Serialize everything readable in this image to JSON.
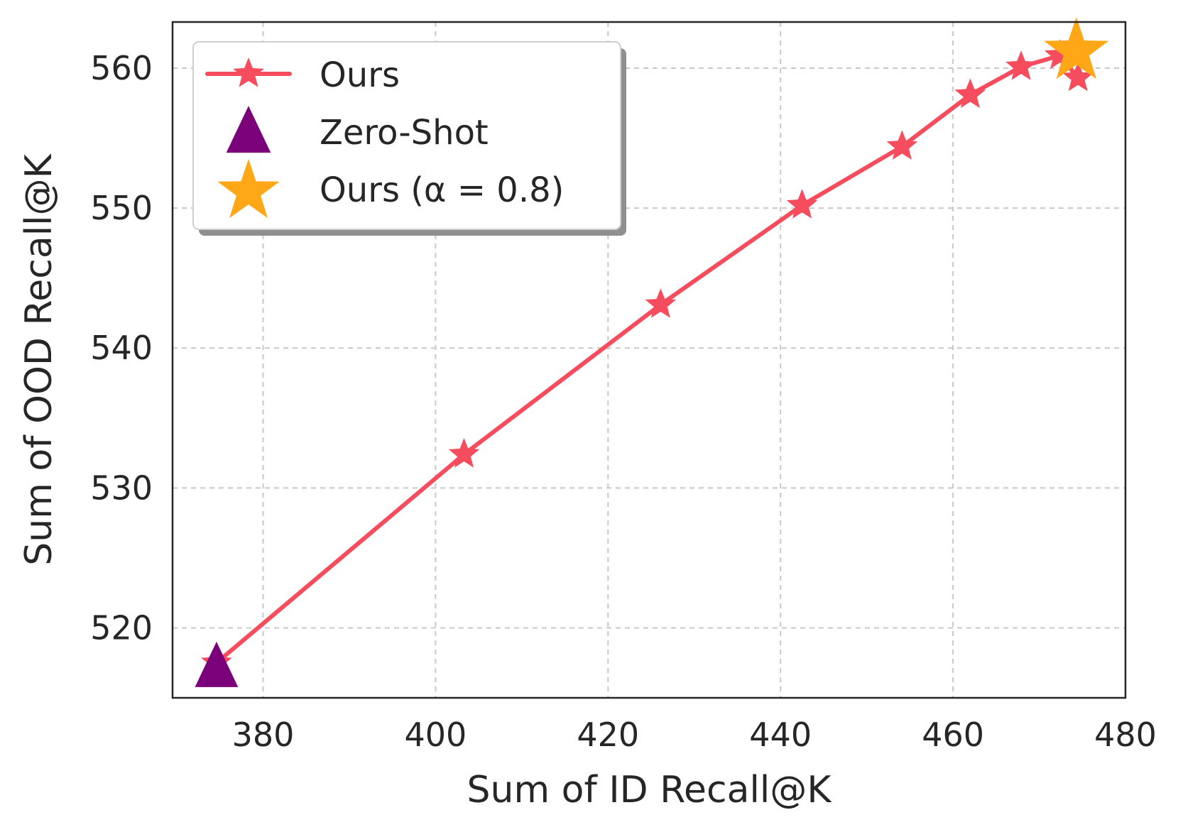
{
  "chart_data": {
    "type": "line",
    "title": "",
    "xlabel": "Sum of ID Recall@K",
    "ylabel": "Sum of OOD Recall@K",
    "xlim": [
      369.5,
      480
    ],
    "ylim": [
      515,
      563.3
    ],
    "xticks": [
      380,
      400,
      420,
      440,
      460,
      480
    ],
    "yticks": [
      520,
      530,
      540,
      550,
      560
    ],
    "grid": true,
    "legend_position": "top-left",
    "series": [
      {
        "name": "Ours",
        "kind": "line",
        "marker": "star",
        "color": "#f64d5e",
        "x": [
          374.6,
          403.3,
          426.1,
          442.5,
          454.1,
          462.0,
          467.9,
          472.4,
          474.5
        ],
        "y": [
          517.5,
          532.4,
          543.1,
          550.2,
          554.4,
          558.1,
          560.1,
          560.9,
          559.3
        ]
      },
      {
        "name": "Zero-Shot",
        "kind": "scatter",
        "marker": "triangle",
        "color": "#7b017b",
        "x": [
          374.6
        ],
        "y": [
          517.0
        ]
      },
      {
        "name": "Ours (α = 0.8)",
        "kind": "scatter",
        "marker": "star",
        "color": "#ffa717",
        "x": [
          474.3
        ],
        "y": [
          561.2
        ]
      }
    ]
  }
}
